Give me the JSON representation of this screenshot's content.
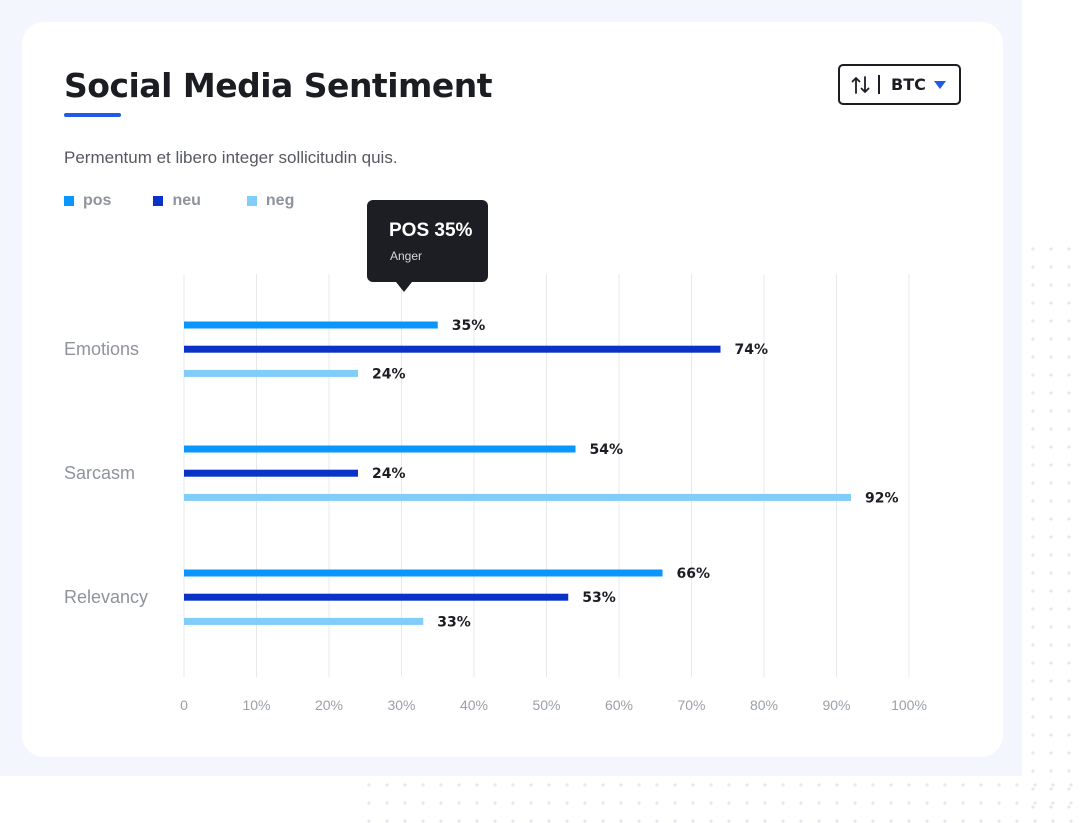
{
  "colors": {
    "pos": "#0a96ff",
    "neu": "#0b32c6",
    "neg": "#7fcdf8",
    "accent": "#2259e6",
    "grid": "#e6e8ec"
  },
  "selector": {
    "icon": "sort-arrows-icon",
    "label": "BTC",
    "caret_icon": "caret-down-icon"
  },
  "tooltip": {
    "title": "POS 35%",
    "subtitle": "Anger"
  },
  "chart_data": {
    "type": "bar",
    "orientation": "horizontal",
    "title": "Social Media Sentiment",
    "subtitle": "Permentum et libero integer sollicitudin quis.",
    "categories": [
      "Emotions",
      "Sarcasm",
      "Relevancy"
    ],
    "series": [
      {
        "name": "pos",
        "values": [
          35,
          54,
          66
        ]
      },
      {
        "name": "neu",
        "values": [
          74,
          24,
          53
        ]
      },
      {
        "name": "neg",
        "values": [
          24,
          92,
          33
        ]
      }
    ],
    "xlim": [
      0,
      100
    ],
    "xticks": [
      "0",
      "10%",
      "20%",
      "30%",
      "40%",
      "50%",
      "60%",
      "70%",
      "80%",
      "90%",
      "100%"
    ],
    "value_suffix": "%",
    "grid": true,
    "legend_position": "top-left"
  }
}
